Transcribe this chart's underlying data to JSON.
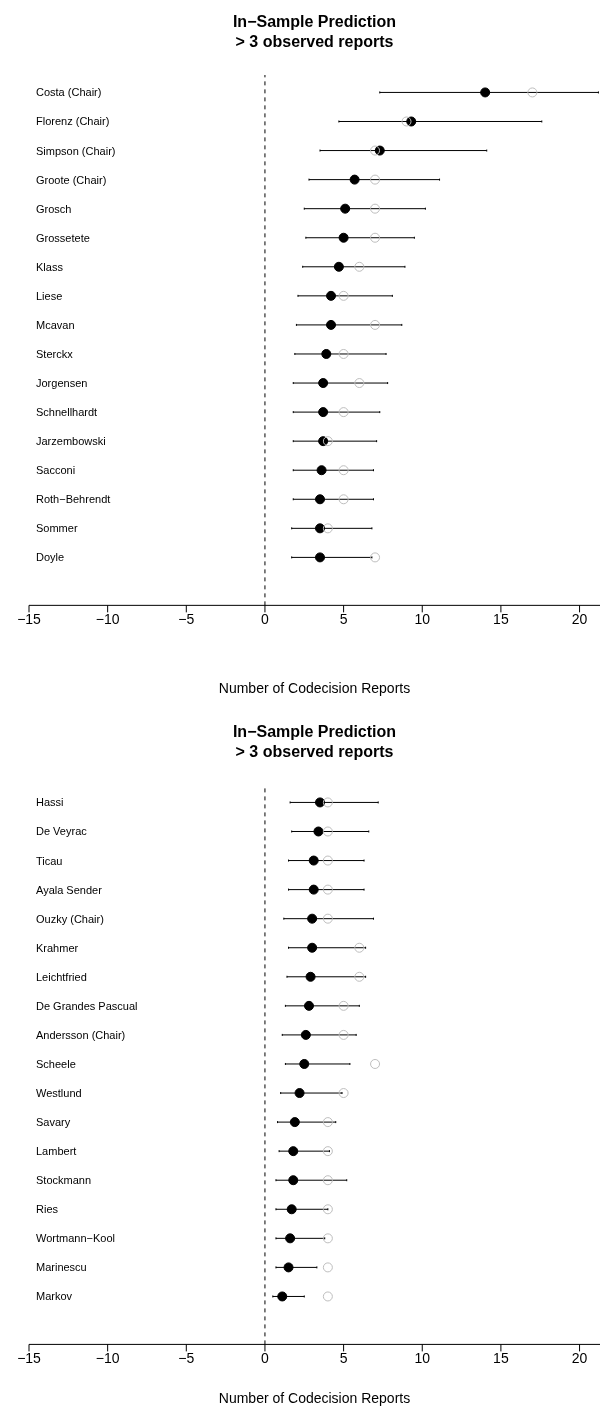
{
  "chart_data": [
    {
      "type": "scatter",
      "orientation": "horizontal",
      "title": "In−Sample Prediction",
      "subtitle": "> 3 observed reports",
      "xlabel": "Number of Codecision Reports",
      "marker": "circle",
      "categories": [
        "Costa (Chair)",
        "Florenz (Chair)",
        "Simpson (Chair)",
        "Groote (Chair)",
        "Grosch",
        "Grossetete",
        "Klass",
        "Liese",
        "Mcavan",
        "Sterckx",
        "Jorgensen",
        "Schnellhardt",
        "Jarzembowski",
        "Sacconi",
        "Roth−Behrendt",
        "Sommer",
        "Doyle"
      ],
      "series": [
        {
          "color": "#000000",
          "values": [
            14.0,
            9.3,
            7.3,
            5.7,
            5.1,
            5.0,
            4.7,
            4.2,
            4.2,
            3.9,
            3.7,
            3.7,
            3.7,
            3.6,
            3.5,
            3.5,
            3.5
          ],
          "errors": [
            [
              7.3,
              21.2
            ],
            [
              4.7,
              17.6
            ],
            [
              3.5,
              14.1
            ],
            [
              2.8,
              11.1
            ],
            [
              2.5,
              10.2
            ],
            [
              2.6,
              9.5
            ],
            [
              2.4,
              8.9
            ],
            [
              2.1,
              8.1
            ],
            [
              2.0,
              8.7
            ],
            [
              1.9,
              7.7
            ],
            [
              1.8,
              7.8
            ],
            [
              1.8,
              7.3
            ],
            [
              1.8,
              7.1
            ],
            [
              1.8,
              6.9
            ],
            [
              1.8,
              6.9
            ],
            [
              1.7,
              6.8
            ],
            [
              1.7,
              6.8
            ]
          ]
        },
        {
          "color": "#bebebe",
          "values": [
            17,
            9,
            7,
            7,
            7,
            7,
            6,
            5,
            7,
            5,
            6,
            5,
            4,
            5,
            5,
            4,
            7
          ]
        }
      ],
      "xlim": [
        -15,
        21.3
      ],
      "xticks": [
        {
          "value": -15,
          "label": "−15"
        },
        {
          "value": -10,
          "label": "−10"
        },
        {
          "value": -5,
          "label": "−5"
        },
        0,
        5,
        10,
        15,
        20
      ],
      "ref_lines": [
        {
          "axis": "x",
          "value": 0,
          "color": "#000000",
          "line_style": "dashed"
        }
      ]
    },
    {
      "type": "scatter",
      "orientation": "horizontal",
      "title": "In−Sample Prediction",
      "subtitle": "> 3 observed reports",
      "xlabel": "Number of Codecision Reports",
      "marker": "circle",
      "categories": [
        "Hassi",
        "De Veyrac",
        "Ticau",
        "Ayala Sender",
        "Ouzky (Chair)",
        "Krahmer",
        "Leichtfried",
        "De Grandes Pascual",
        "Andersson (Chair)",
        "Scheele",
        "Westlund",
        "Savary",
        "Lambert",
        "Stockmann",
        "Ries",
        "Wortmann−Kool",
        "Marinescu",
        "Markov"
      ],
      "series": [
        {
          "color": "#000000",
          "values": [
            3.5,
            3.4,
            3.1,
            3.1,
            3.0,
            3.0,
            2.9,
            2.8,
            2.6,
            2.5,
            2.2,
            1.9,
            1.8,
            1.8,
            1.7,
            1.6,
            1.5,
            1.1
          ],
          "errors": [
            [
              1.6,
              7.2
            ],
            [
              1.7,
              6.6
            ],
            [
              1.5,
              6.3
            ],
            [
              1.5,
              6.3
            ],
            [
              1.2,
              6.9
            ],
            [
              1.5,
              6.4
            ],
            [
              1.4,
              6.4
            ],
            [
              1.3,
              6.0
            ],
            [
              1.1,
              5.8
            ],
            [
              1.3,
              5.4
            ],
            [
              1.0,
              4.9
            ],
            [
              0.8,
              4.5
            ],
            [
              0.9,
              4.1
            ],
            [
              0.7,
              5.2
            ],
            [
              0.7,
              4.0
            ],
            [
              0.7,
              3.8
            ],
            [
              0.7,
              3.3
            ],
            [
              0.5,
              2.5
            ]
          ]
        },
        {
          "color": "#bebebe",
          "values": [
            4,
            4,
            4,
            4,
            4,
            6,
            6,
            5,
            5,
            7,
            5,
            4,
            4,
            4,
            4,
            4,
            4,
            4
          ]
        }
      ],
      "xlim": [
        -15,
        21.3
      ],
      "xticks": [
        {
          "value": -15,
          "label": "−15"
        },
        {
          "value": -10,
          "label": "−10"
        },
        {
          "value": -5,
          "label": "−5"
        },
        0,
        5,
        10,
        15,
        20
      ],
      "ref_lines": [
        {
          "axis": "x",
          "value": 0,
          "color": "#000000",
          "line_style": "dashed"
        }
      ]
    }
  ]
}
